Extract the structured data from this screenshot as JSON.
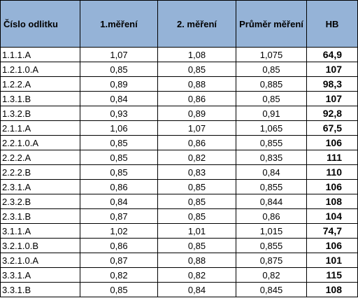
{
  "table": {
    "headers": [
      "Číslo odlitku",
      "1.měření",
      "2. měření",
      "Průměr měření",
      "HB"
    ],
    "rows": [
      [
        "1.1.1.A",
        "1,07",
        "1,08",
        "1,075",
        "64,9"
      ],
      [
        "1.2.1.0.A",
        "0,85",
        "0,85",
        "0,85",
        "107"
      ],
      [
        "1.2.2.A",
        "0,89",
        "0,88",
        "0,885",
        "98,3"
      ],
      [
        "1.3.1.B",
        "0,84",
        "0,86",
        "0,85",
        "107"
      ],
      [
        "1.3.2.B",
        "0,93",
        "0,89",
        "0,91",
        "92,8"
      ],
      [
        "2.1.1.A",
        "1,06",
        "1,07",
        "1,065",
        "67,5"
      ],
      [
        "2.2.1.0.A",
        "0,85",
        "0,86",
        "0,855",
        "106"
      ],
      [
        "2.2.2.A",
        "0,85",
        "0,82",
        "0,835",
        "111"
      ],
      [
        "2.2.2.B",
        "0,85",
        "0,83",
        "0,84",
        "110"
      ],
      [
        "2.3.1.A",
        "0,86",
        "0,85",
        "0,855",
        "106"
      ],
      [
        "2.3.2.B",
        "0,84",
        "0,85",
        "0,844",
        "108"
      ],
      [
        "2.3.1.B",
        "0,87",
        "0,85",
        "0,86",
        "104"
      ],
      [
        "3.1.1.A",
        "1,02",
        "1,01",
        "1,015",
        "74,7"
      ],
      [
        "3.2.1.0.B",
        "0,86",
        "0,85",
        "0,855",
        "106"
      ],
      [
        "3.2.1.0.A",
        "0,87",
        "0,88",
        "0,875",
        "101"
      ],
      [
        "3.3.1.A",
        "0,82",
        "0,82",
        "0,82",
        "115"
      ],
      [
        "3.3.1.B",
        "0,85",
        "0,84",
        "0,845",
        "108"
      ]
    ]
  }
}
